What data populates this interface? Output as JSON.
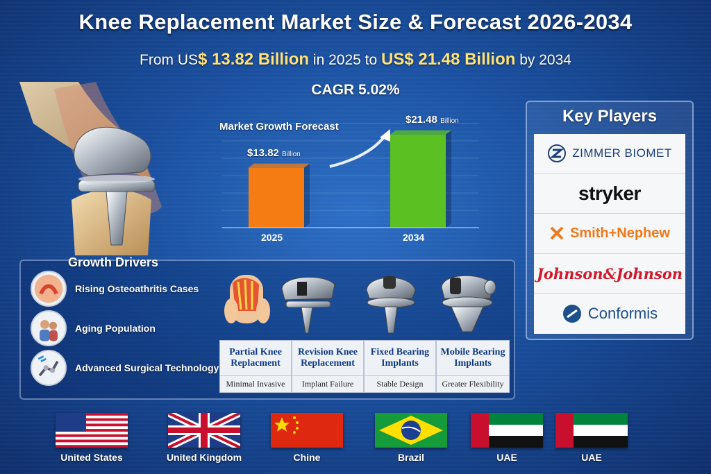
{
  "header": {
    "title": "Knee Replacement Market Size & Forecast 2026-2034",
    "subtitle_pre": "From US",
    "value_2025": "$ 13.82 Billion",
    "subtitle_mid": " in 2025 to ",
    "value_2034": "US$ 21.48 Billion",
    "subtitle_post": " by 2034",
    "cagr": "CAGR 5.02%"
  },
  "chart_data": {
    "type": "bar",
    "title": "Market Growth Forecast",
    "categories": [
      "2025",
      "2034"
    ],
    "values": [
      13.82,
      21.48
    ],
    "data_labels": [
      "$13.82",
      "$21.48"
    ],
    "data_label_unit": "Billion",
    "ylim": [
      0,
      24
    ],
    "colors": [
      "#f47c12",
      "#5bc022"
    ],
    "grid": true
  },
  "key_players": {
    "title": "Key Players",
    "items": [
      "ZIMMER BIOMET",
      "stryker",
      "Smith+Nephew",
      "Johnson&Johnson",
      "Conformis"
    ]
  },
  "growth_drivers": {
    "title": "Growth Drivers",
    "items": [
      "Rising Osteoathritis Cases",
      "Aging Population",
      "Advanced Surgical Technology"
    ]
  },
  "segments": [
    {
      "name": "Partial Knee Replacment",
      "desc": "Minimal Invasive"
    },
    {
      "name": "Revision Knee Replacement",
      "desc": "Implant Failure"
    },
    {
      "name": "Fixed Bearing Implants",
      "desc": "Stable Design"
    },
    {
      "name": "Mobile Bearing Implants",
      "desc": "Greater Flexibility"
    }
  ],
  "regions": [
    "United States",
    "United Kingdom",
    "Chine",
    "Brazil",
    "UAE",
    "UAE"
  ],
  "colors": {
    "highlight": "#ffe27a",
    "background": "#1a4f9e",
    "segment_text": "#0f3a86"
  }
}
